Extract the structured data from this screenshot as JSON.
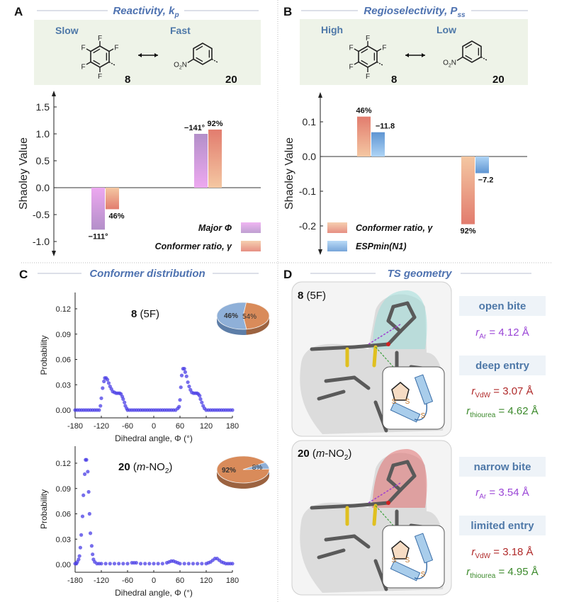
{
  "panels": {
    "A": {
      "label": "A",
      "title": {
        "text": "Reactivity, ",
        "var": "k",
        "sub": "p"
      },
      "left_tag": "Slow",
      "right_tag": "Fast",
      "compound_left": "8",
      "compound_right": "20",
      "atoms_left": [
        "F",
        "F",
        "F",
        "F",
        "F"
      ],
      "nitro": {
        "o": "O",
        "sub": "2",
        "n": "N"
      }
    },
    "B": {
      "label": "B",
      "title": {
        "text": "Regioselectivity, ",
        "var": "P",
        "sub": "ss"
      },
      "left_tag": "High",
      "right_tag": "Low",
      "compound_left": "8",
      "compound_right": "20",
      "atoms_left": [
        "F",
        "F",
        "F",
        "F",
        "F"
      ],
      "nitro": {
        "o": "O",
        "sub": "2",
        "n": "N"
      }
    },
    "C": {
      "label": "C",
      "title": "Conformer distribution"
    },
    "D": {
      "label": "D",
      "title": "TS geometry",
      "cases": [
        {
          "title_bold": "8",
          "title_rest": " (5F)",
          "inset_atoms": [
            "S",
            "S",
            "S"
          ],
          "bite_label": "open bite",
          "r_ar": {
            "sym": "r",
            "sub": "Ar",
            "value": " = 4.12 Å"
          },
          "entry_label": "deep entry",
          "r_vdw": {
            "sym": "r",
            "sub": "VdW",
            "value": " = 3.07 Å"
          },
          "r_thiourea": {
            "sym": "r",
            "sub": "thiourea",
            "value": " = 4.62 Å"
          },
          "surface_color": "#9fdcd8"
        },
        {
          "title_bold": "20",
          "title_rest_a": " (",
          "title_italic": "m",
          "title_rest_b": "-NO",
          "title_sub": "2",
          "title_rest_c": ")",
          "inset_atoms": [
            "S",
            "S",
            "S"
          ],
          "bite_label": "narrow bite",
          "r_ar": {
            "sym": "r",
            "sub": "Ar",
            "value": " = 3.54 Å"
          },
          "entry_label": "limited entry",
          "r_vdw": {
            "sym": "r",
            "sub": "VdW",
            "value": " = 3.18 Å"
          },
          "r_thiourea": {
            "sym": "r",
            "sub": "thiourea",
            "value": " = 4.95 Å"
          },
          "surface_color": "#e07070"
        }
      ],
      "colors": {
        "r_ar": "#9a45d6",
        "r_vdw": "#b02a2a",
        "r_thiourea": "#3c8a2c"
      }
    }
  },
  "chart_data": [
    {
      "type": "bar",
      "panel": "A",
      "ylabel": "Shaoley Value",
      "ylim": [
        -1.3,
        1.8
      ],
      "yticks": [
        "1.5",
        "1.0",
        "0.5",
        "0.0",
        "-0.5",
        "-1.0"
      ],
      "ytick_values": [
        1.5,
        1.0,
        0.5,
        0.0,
        -0.5,
        -1.0
      ],
      "categories": [
        "8",
        "20"
      ],
      "legend_position": "bottom-right",
      "series": [
        {
          "name": "Major Φ",
          "values": [
            -0.78,
            1.0
          ],
          "labels": [
            "−111°",
            "−141°"
          ],
          "color": "#b38fc9",
          "color_light": "#eda8f0"
        },
        {
          "name": "Conformer ratio, γ",
          "values": [
            -0.4,
            1.08
          ],
          "labels": [
            "46%",
            "92%"
          ],
          "color": "#e27c6e",
          "color_light": "#f4c7a2"
        }
      ]
    },
    {
      "type": "bar",
      "panel": "B",
      "ylabel": "Shaoley Value",
      "ylim": [
        -0.27,
        0.18
      ],
      "yticks": [
        "0.1",
        "0.0",
        "-0.1",
        "-0.2"
      ],
      "ytick_values": [
        0.1,
        0.0,
        -0.1,
        -0.2
      ],
      "categories": [
        "8",
        "20"
      ],
      "legend_position": "bottom-left",
      "series": [
        {
          "name": "Conformer ratio, γ",
          "values": [
            0.115,
            -0.195
          ],
          "labels": [
            "46%",
            "92%"
          ],
          "color": "#e27c6e",
          "color_light": "#f4c7a2"
        },
        {
          "name": "ESPmin(N1)",
          "values": [
            0.07,
            -0.048
          ],
          "labels": [
            "−11.8",
            "−7.2"
          ],
          "color": "#5f95d2",
          "color_light": "#aed4f6"
        }
      ]
    },
    {
      "type": "scatter",
      "panel": "C",
      "title_bold": "8",
      "title_rest": " (5F)",
      "xlabel": "Dihedral angle, Φ (°)",
      "ylabel": "Probability",
      "xlim": [
        -180,
        180
      ],
      "ylim": [
        0,
        0.135
      ],
      "xticks": [
        "-180",
        "-120",
        "-60",
        "0",
        "60",
        "120",
        "180"
      ],
      "xtick_values": [
        -180,
        -120,
        -60,
        0,
        60,
        120,
        180
      ],
      "yticks": [
        "0.12",
        "0.09",
        "0.06",
        "0.03",
        "0.00"
      ],
      "ytick_values": [
        0.12,
        0.09,
        0.06,
        0.03,
        0.0
      ],
      "color": "#4a3ee6",
      "points": [
        [
          -180,
          0
        ],
        [
          -175,
          0
        ],
        [
          -170,
          0
        ],
        [
          -165,
          0
        ],
        [
          -160,
          0
        ],
        [
          -155,
          0
        ],
        [
          -150,
          0
        ],
        [
          -145,
          0
        ],
        [
          -140,
          0
        ],
        [
          -135,
          0
        ],
        [
          -130,
          0
        ],
        [
          -125,
          0
        ],
        [
          -122,
          0.005
        ],
        [
          -120,
          0.014
        ],
        [
          -117,
          0.026
        ],
        [
          -114,
          0.034
        ],
        [
          -112,
          0.038
        ],
        [
          -109,
          0.038
        ],
        [
          -106,
          0.036
        ],
        [
          -103,
          0.032
        ],
        [
          -100,
          0.028
        ],
        [
          -97,
          0.025
        ],
        [
          -94,
          0.022
        ],
        [
          -90,
          0.021
        ],
        [
          -86,
          0.02
        ],
        [
          -82,
          0.02
        ],
        [
          -78,
          0.02
        ],
        [
          -75,
          0.019
        ],
        [
          -72,
          0.016
        ],
        [
          -70,
          0.013
        ],
        [
          -67,
          0.009
        ],
        [
          -65,
          0.005
        ],
        [
          -62,
          0.002
        ],
        [
          -60,
          0
        ],
        [
          -55,
          0
        ],
        [
          -50,
          0
        ],
        [
          -45,
          0
        ],
        [
          -40,
          0
        ],
        [
          -35,
          0
        ],
        [
          -30,
          0
        ],
        [
          -25,
          0
        ],
        [
          -20,
          0
        ],
        [
          -15,
          0
        ],
        [
          -10,
          0
        ],
        [
          -5,
          0
        ],
        [
          0,
          0
        ],
        [
          5,
          0
        ],
        [
          10,
          0
        ],
        [
          15,
          0
        ],
        [
          20,
          0
        ],
        [
          25,
          0
        ],
        [
          30,
          0
        ],
        [
          35,
          0
        ],
        [
          40,
          0
        ],
        [
          45,
          0
        ],
        [
          50,
          0
        ],
        [
          55,
          0.002
        ],
        [
          58,
          0.004
        ],
        [
          60,
          0.012
        ],
        [
          62,
          0.027
        ],
        [
          64,
          0.041
        ],
        [
          67,
          0.049
        ],
        [
          70,
          0.049
        ],
        [
          72,
          0.045
        ],
        [
          75,
          0.04
        ],
        [
          78,
          0.033
        ],
        [
          81,
          0.028
        ],
        [
          84,
          0.024
        ],
        [
          87,
          0.021
        ],
        [
          91,
          0.02
        ],
        [
          95,
          0.02
        ],
        [
          99,
          0.02
        ],
        [
          102,
          0.019
        ],
        [
          105,
          0.017
        ],
        [
          107,
          0.013
        ],
        [
          110,
          0.009
        ],
        [
          113,
          0.005
        ],
        [
          116,
          0.002
        ],
        [
          120,
          0
        ],
        [
          125,
          0
        ],
        [
          130,
          0
        ],
        [
          135,
          0
        ],
        [
          140,
          0
        ],
        [
          145,
          0
        ],
        [
          150,
          0
        ],
        [
          155,
          0
        ],
        [
          160,
          0
        ],
        [
          165,
          0
        ],
        [
          170,
          0
        ],
        [
          175,
          0
        ],
        [
          180,
          0
        ]
      ],
      "pie": {
        "values": [
          46,
          54
        ],
        "labels": [
          "46%",
          "54%"
        ],
        "colors": [
          "#d98b5a",
          "#8fb0d8"
        ]
      }
    },
    {
      "type": "scatter",
      "panel": "C",
      "title_bold": "20",
      "title_rest_a": " (",
      "title_italic": "m",
      "title_rest_b": "-NO",
      "title_sub": "2",
      "title_rest_c": ")",
      "xlabel": "Dihedral angle, Φ (°)",
      "ylabel": "Probability",
      "xlim": [
        -180,
        180
      ],
      "ylim": [
        0,
        0.135
      ],
      "xticks": [
        "-180",
        "-120",
        "-60",
        "0",
        "60",
        "120",
        "180"
      ],
      "xtick_values": [
        -180,
        -120,
        -60,
        0,
        60,
        120,
        180
      ],
      "yticks": [
        "0.12",
        "0.09",
        "0.06",
        "0.03",
        "0.00"
      ],
      "ytick_values": [
        0.12,
        0.09,
        0.06,
        0.03,
        0.0
      ],
      "color": "#4a3ee6",
      "points": [
        [
          -180,
          0.001
        ],
        [
          -177,
          0.001
        ],
        [
          -175,
          0.003
        ],
        [
          -172,
          0.006
        ],
        [
          -170,
          0.01
        ],
        [
          -168,
          0.02
        ],
        [
          -166,
          0.035
        ],
        [
          -163,
          0.057
        ],
        [
          -161,
          0.082
        ],
        [
          -158,
          0.107
        ],
        [
          -156,
          0.124
        ],
        [
          -154,
          0.124
        ],
        [
          -151,
          0.11
        ],
        [
          -149,
          0.086
        ],
        [
          -147,
          0.06
        ],
        [
          -145,
          0.037
        ],
        [
          -142,
          0.022
        ],
        [
          -140,
          0.012
        ],
        [
          -138,
          0.006
        ],
        [
          -135,
          0.003
        ],
        [
          -130,
          0.001
        ],
        [
          -125,
          0.001
        ],
        [
          -120,
          0.001
        ],
        [
          -110,
          0.001
        ],
        [
          -100,
          0.001
        ],
        [
          -90,
          0.001
        ],
        [
          -80,
          0.001
        ],
        [
          -70,
          0.001
        ],
        [
          -60,
          0.001
        ],
        [
          -50,
          0.002
        ],
        [
          -45,
          0.002
        ],
        [
          -40,
          0.002
        ],
        [
          -30,
          0.001
        ],
        [
          -20,
          0.001
        ],
        [
          -10,
          0.001
        ],
        [
          0,
          0.001
        ],
        [
          10,
          0.001
        ],
        [
          20,
          0.001
        ],
        [
          30,
          0.002
        ],
        [
          35,
          0.003
        ],
        [
          40,
          0.004
        ],
        [
          45,
          0.004
        ],
        [
          50,
          0.003
        ],
        [
          55,
          0.002
        ],
        [
          60,
          0.001
        ],
        [
          70,
          0.001
        ],
        [
          80,
          0.001
        ],
        [
          90,
          0.001
        ],
        [
          100,
          0.001
        ],
        [
          110,
          0.001
        ],
        [
          120,
          0.001
        ],
        [
          125,
          0.002
        ],
        [
          130,
          0.003
        ],
        [
          135,
          0.005
        ],
        [
          140,
          0.007
        ],
        [
          145,
          0.007
        ],
        [
          150,
          0.005
        ],
        [
          155,
          0.003
        ],
        [
          160,
          0.002
        ],
        [
          165,
          0.001
        ],
        [
          170,
          0.001
        ],
        [
          175,
          0.001
        ],
        [
          180,
          0.001
        ]
      ],
      "pie": {
        "values": [
          92,
          8
        ],
        "labels": [
          "92%",
          "8%"
        ],
        "colors": [
          "#d98b5a",
          "#8fb0d8"
        ]
      }
    }
  ]
}
